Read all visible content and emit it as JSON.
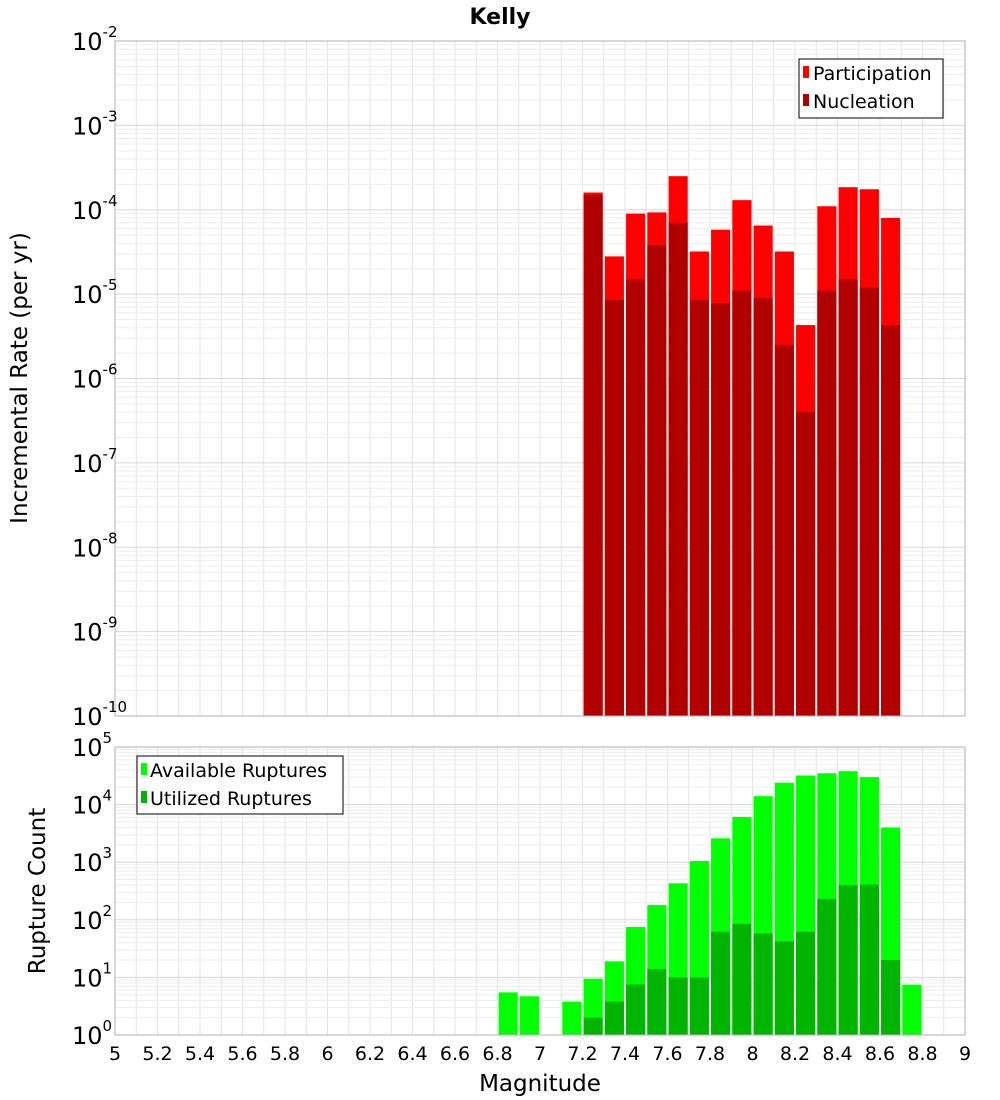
{
  "colors": {
    "participation": "#ff0000",
    "nucleation": "#b00000",
    "available": "#00ff00",
    "utilized": "#00b400",
    "grid": "#e4e4e4",
    "frame": "#b0b0b0"
  },
  "chart_data": [
    {
      "id": "top",
      "type": "bar",
      "title": "Kelly",
      "ylabel": "Incremental Rate (per yr)",
      "yscale": "log",
      "ylim": [
        1e-10,
        0.01
      ],
      "y_tick_exponents": [
        "-10",
        "-9",
        "-8",
        "-7",
        "-6",
        "-5",
        "-4",
        "-3",
        "-2"
      ],
      "y_tick_base": "10",
      "legend_position": "top-right",
      "bin_centers": [
        7.25,
        7.35,
        7.45,
        7.55,
        7.65,
        7.75,
        7.85,
        7.95,
        8.05,
        8.15,
        8.25,
        8.35,
        8.45,
        8.55,
        8.65
      ],
      "series": [
        {
          "name": "Participation",
          "values": [
            0.00016,
            2.8e-05,
            9e-05,
            9.3e-05,
            0.00025,
            3.2e-05,
            5.8e-05,
            0.00013,
            6.5e-05,
            3.2e-05,
            4.3e-06,
            0.00011,
            0.000185,
            0.000175,
            8e-05
          ]
        },
        {
          "name": "Nucleation",
          "values": [
            0.00015,
            8.5e-06,
            1.5e-05,
            3.8e-05,
            7e-05,
            8.5e-06,
            7.8e-06,
            1.1e-05,
            9e-06,
            2.5e-06,
            4e-07,
            1.1e-05,
            1.5e-05,
            1.2e-05,
            4.3e-06
          ]
        }
      ]
    },
    {
      "id": "bottom",
      "type": "bar",
      "xlabel": "Magnitude",
      "ylabel": "Rupture Count",
      "yscale": "log",
      "ylim": [
        1,
        100000
      ],
      "xlim": [
        5,
        9
      ],
      "x_ticks": [
        "5",
        "5.2",
        "5.4",
        "5.6",
        "5.8",
        "6",
        "6.2",
        "6.4",
        "6.6",
        "6.8",
        "7",
        "7.2",
        "7.4",
        "7.6",
        "7.8",
        "8",
        "8.2",
        "8.4",
        "8.6",
        "8.8",
        "9"
      ],
      "y_tick_exponents": [
        "0",
        "1",
        "2",
        "3",
        "4",
        "5"
      ],
      "y_tick_base": "10",
      "legend_position": "top-left",
      "bin_centers": [
        6.85,
        6.95,
        7.05,
        7.15,
        7.25,
        7.35,
        7.45,
        7.55,
        7.65,
        7.75,
        7.85,
        7.95,
        8.05,
        8.15,
        8.25,
        8.35,
        8.45,
        8.55,
        8.65,
        8.75
      ],
      "series": [
        {
          "name": "Available Ruptures",
          "values": [
            5.5,
            4.7,
            0,
            3.8,
            9.5,
            19,
            75,
            180,
            430,
            1050,
            2600,
            6100,
            14000,
            24000,
            32000,
            35000,
            38000,
            30000,
            4000,
            7.5
          ]
        },
        {
          "name": "Utilized Ruptures",
          "values": [
            0,
            0,
            0,
            0,
            2,
            3.8,
            7.5,
            14,
            10,
            10,
            62,
            85,
            58,
            42,
            62,
            230,
            400,
            410,
            20,
            0
          ]
        }
      ]
    }
  ]
}
